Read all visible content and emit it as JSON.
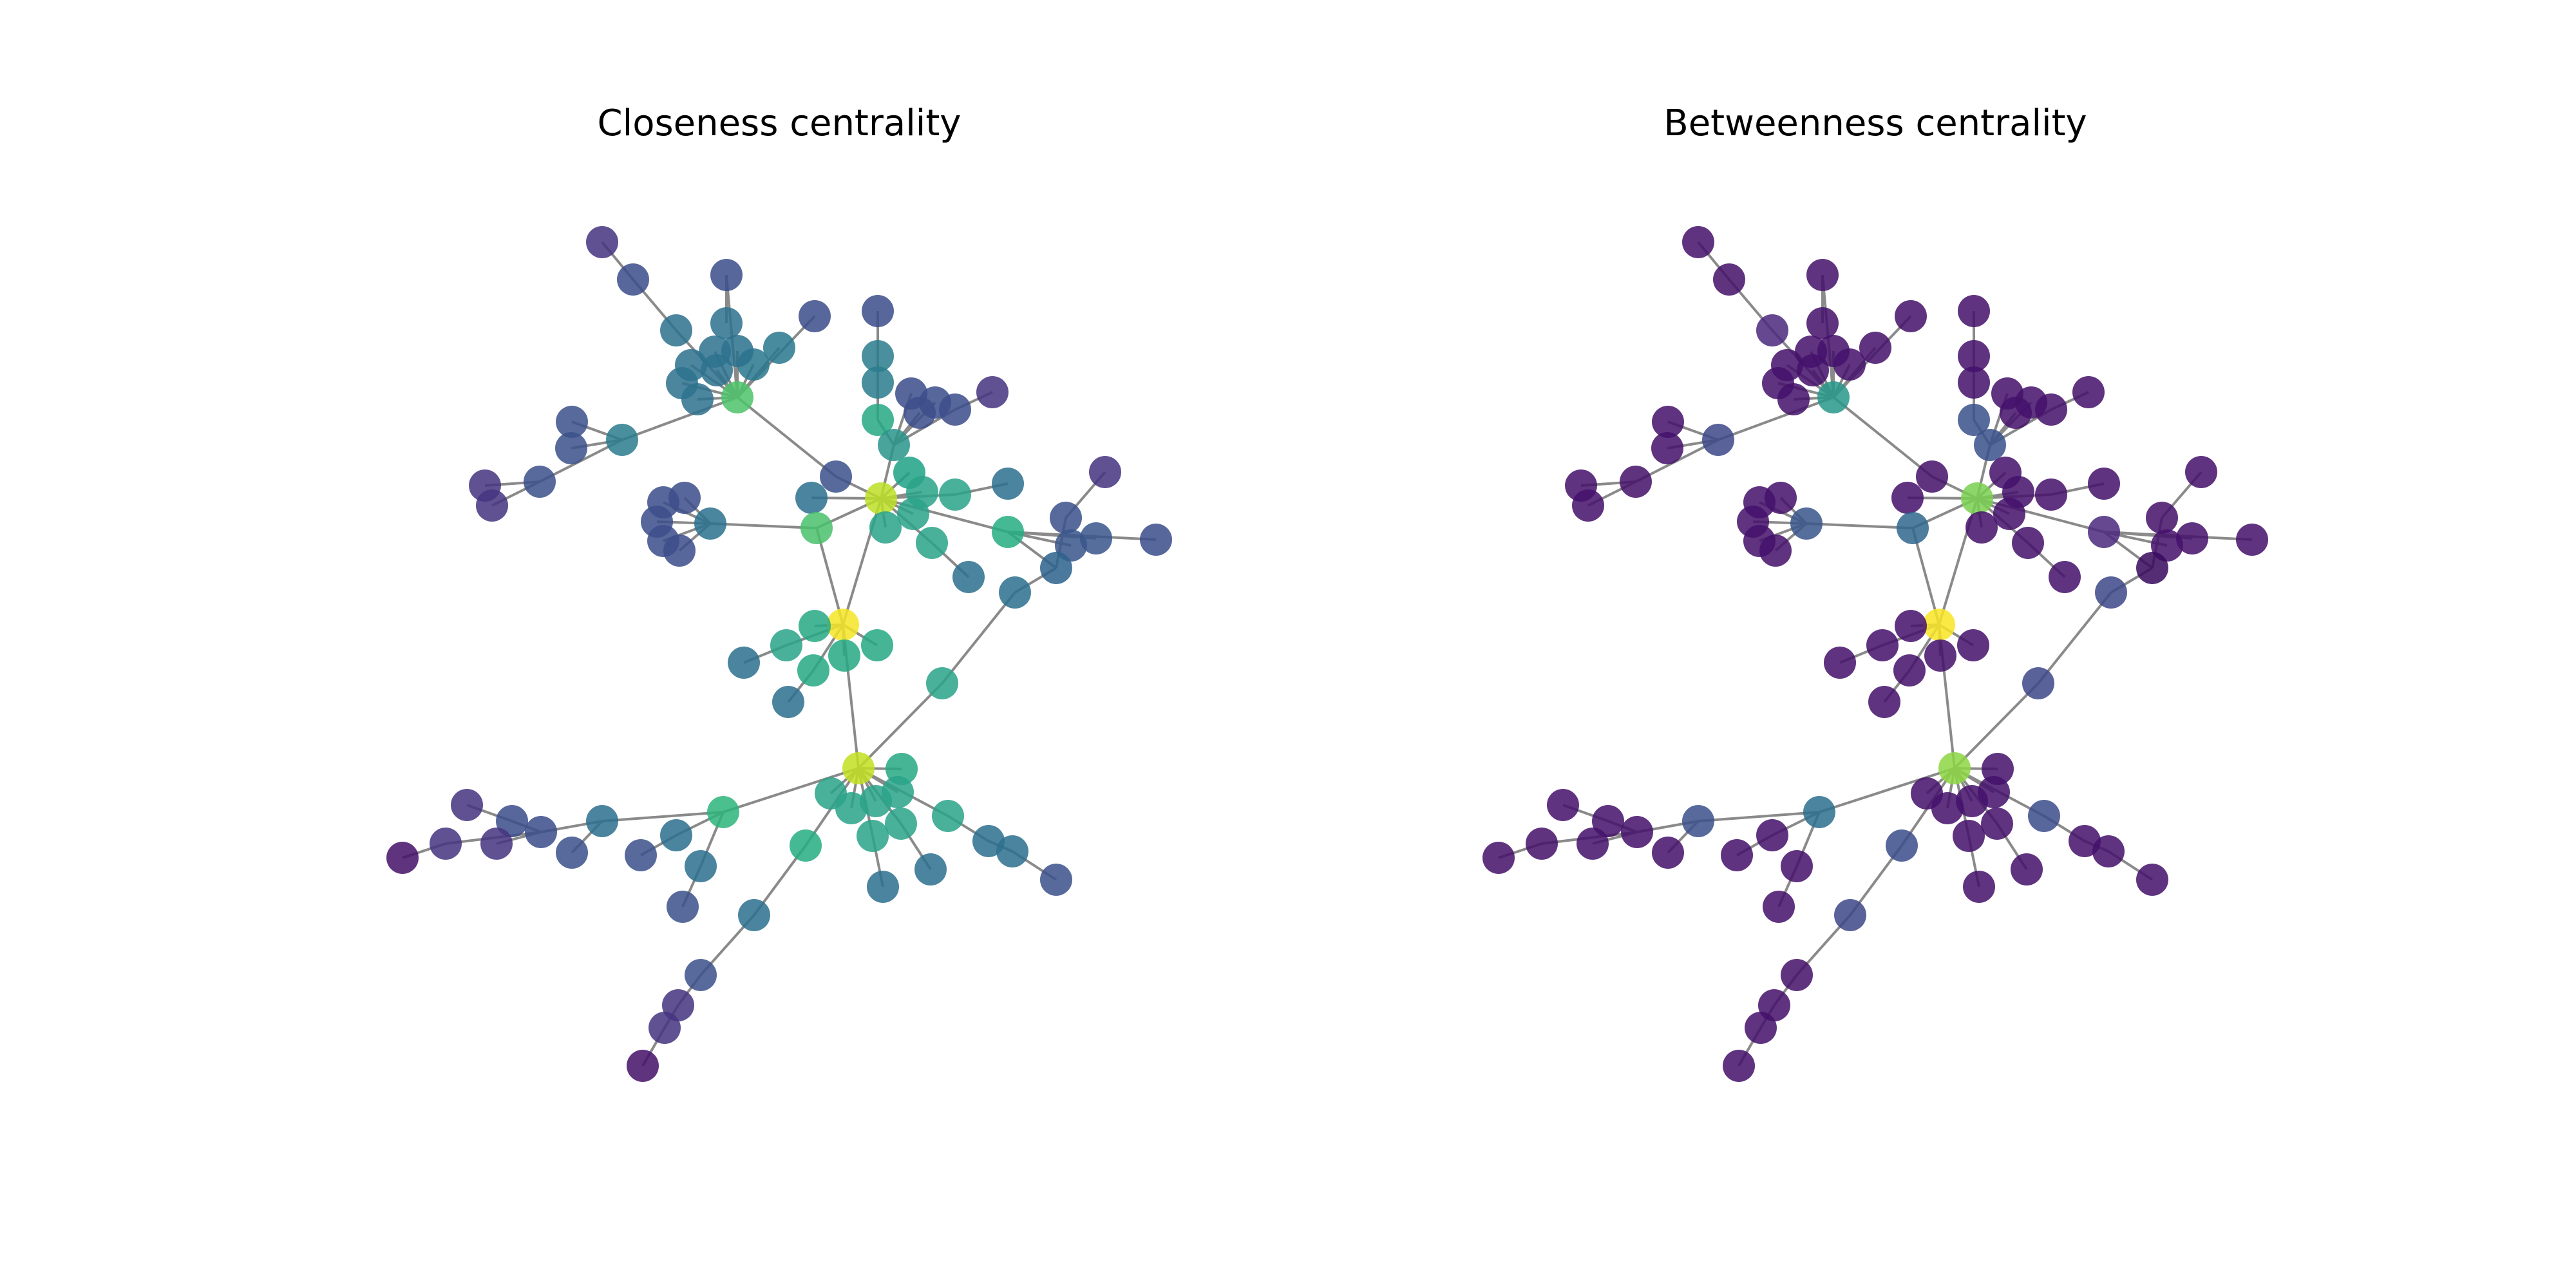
{
  "panels": [
    {
      "title": "Closeness centrality"
    },
    {
      "title": "Betweenness centrality"
    }
  ],
  "colormap": "viridis",
  "edge_color": "#8a8a8a"
}
